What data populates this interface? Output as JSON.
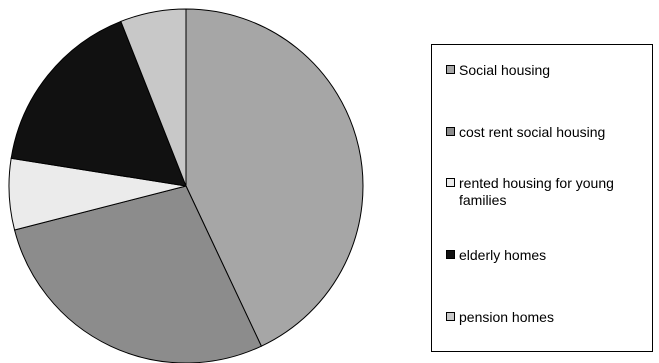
{
  "chart_data": {
    "type": "pie",
    "start_angle_deg": 0,
    "direction": "clockwise",
    "legend": "right",
    "slices": [
      {
        "label": "Social housing",
        "value": 43,
        "color": "#a6a6a6"
      },
      {
        "label": "cost rent social housing",
        "value": 28,
        "color": "#8c8c8c"
      },
      {
        "label": "rented housing for young families",
        "value": 6.5,
        "color": "#ebebeb"
      },
      {
        "label": "elderly homes",
        "value": 16.5,
        "color": "#111111"
      },
      {
        "label": "pension homes",
        "value": 6,
        "color": "#c8c8c8"
      }
    ]
  }
}
